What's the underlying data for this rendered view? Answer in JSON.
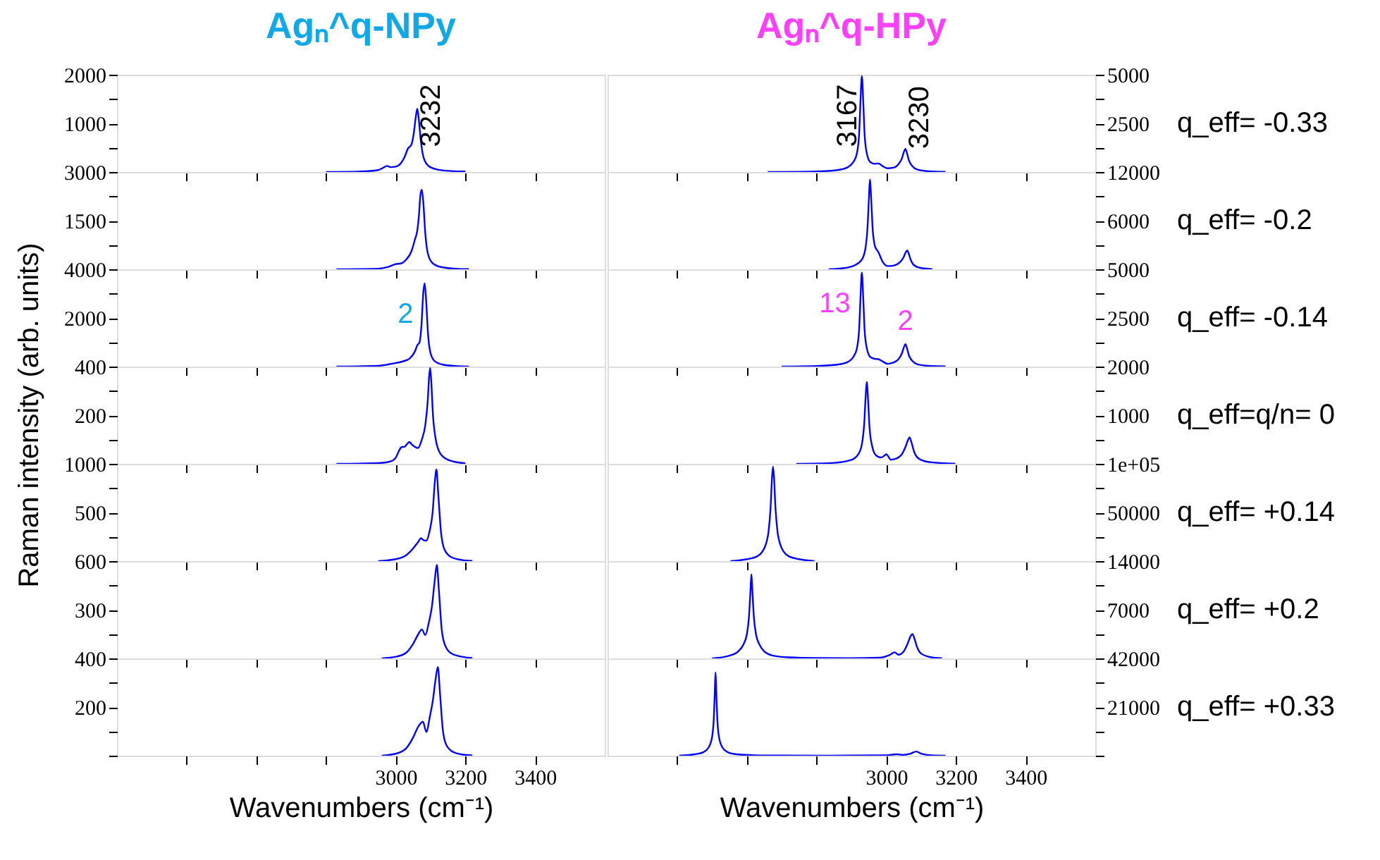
{
  "chart_data": [
    {
      "type": "line",
      "title": "Agₙ^q-NPy",
      "xlim": [
        2200,
        3600
      ],
      "xticks": [
        {
          "value": 2400,
          "label": null
        },
        {
          "value": 2600,
          "label": null
        },
        {
          "value": 2800,
          "label": null
        },
        3000,
        3200,
        3400
      ],
      "ylim": [
        0,
        2000
      ],
      "yticks": [
        {
          "value": 0,
          "label": null
        },
        {
          "value": 500,
          "label": null
        },
        1000,
        {
          "value": 1500,
          "label": null
        },
        2000
      ],
      "tick_labels": "y",
      "annotations": [
        {
          "text": "3232",
          "x": 3062
        }
      ],
      "series": [
        {
          "color": "#0000ff",
          "x": [
            2800,
            2900,
            2950,
            2965,
            2975,
            2985,
            3000,
            3015,
            3025,
            3035,
            3045,
            3052,
            3058,
            3062,
            3066,
            3072,
            3080,
            3095,
            3120,
            3160,
            3200
          ],
          "values": [
            0,
            10,
            40,
            90,
            125,
            100,
            110,
            180,
            300,
            480,
            560,
            800,
            1150,
            1300,
            1100,
            650,
            300,
            120,
            50,
            20,
            10
          ]
        }
      ]
    },
    {
      "type": "line",
      "title": "Agₙ^q-HPy",
      "xlim": [
        2200,
        3600
      ],
      "xticks": [
        {
          "value": 2400,
          "label": null
        },
        {
          "value": 2600,
          "label": null
        },
        {
          "value": 2800,
          "label": null
        },
        3000,
        3200,
        3400
      ],
      "ylim": [
        0,
        5000
      ],
      "yticks": [
        {
          "value": 0,
          "label": null
        },
        {
          "value": 1250,
          "label": null
        },
        2500,
        {
          "value": 3750,
          "label": null
        },
        5000
      ],
      "tick_labels": "y",
      "annotations": [
        {
          "text": "3167",
          "x": 2930
        },
        {
          "text": "3230",
          "x": 3055,
          "y": 1190
        },
        "q_eff= -0.33"
      ],
      "series": [
        {
          "color": "#0000ff",
          "x": [
            2660,
            2800,
            2860,
            2890,
            2905,
            2915,
            2922,
            2926,
            2930,
            2934,
            2938,
            2945,
            2955,
            2967,
            2977,
            2990,
            3004,
            3020,
            3035,
            3045,
            3051,
            3055,
            3059,
            3065,
            3075,
            3090,
            3120,
            3170
          ],
          "values": [
            0,
            30,
            100,
            250,
            500,
            900,
            1900,
            3600,
            4930,
            3600,
            1900,
            900,
            500,
            420,
            440,
            300,
            190,
            220,
            400,
            700,
            1050,
            1190,
            1000,
            600,
            300,
            120,
            40,
            10
          ]
        }
      ]
    },
    {
      "type": "line",
      "xlim": [
        2200,
        3600
      ],
      "xticks": [
        {
          "value": 2400,
          "label": null
        },
        {
          "value": 2600,
          "label": null
        },
        {
          "value": 2800,
          "label": null
        },
        3000,
        3200,
        3400
      ],
      "ylim": [
        0,
        3000
      ],
      "yticks": [
        {
          "value": 0,
          "label": null
        },
        {
          "value": 750,
          "label": null
        },
        1500,
        {
          "value": 2250,
          "label": null
        },
        3000
      ],
      "tick_labels": "y",
      "series": [
        {
          "color": "#0000ff",
          "x": [
            2830,
            2950,
            2980,
            3000,
            3015,
            3030,
            3045,
            3055,
            3062,
            3067,
            3071,
            3075,
            3079,
            3085,
            3092,
            3105,
            3130,
            3170,
            3210
          ],
          "values": [
            0,
            20,
            80,
            160,
            180,
            300,
            550,
            910,
            1200,
            1700,
            2300,
            2450,
            2100,
            1100,
            500,
            200,
            70,
            20,
            5
          ]
        }
      ]
    },
    {
      "type": "line",
      "xlim": [
        2200,
        3600
      ],
      "xticks": [
        {
          "value": 2400,
          "label": null
        },
        {
          "value": 2600,
          "label": null
        },
        {
          "value": 2800,
          "label": null
        },
        3000,
        3200,
        3400
      ],
      "ylim": [
        0,
        12000
      ],
      "yticks": [
        {
          "value": 0,
          "label": null
        },
        {
          "value": 3000,
          "label": null
        },
        6000,
        {
          "value": 9000,
          "label": null
        },
        12000
      ],
      "tick_labels": "y",
      "annotations": [
        "q_eff= -0.2"
      ],
      "series": [
        {
          "color": "#0000ff",
          "x": [
            2835,
            2880,
            2910,
            2930,
            2940,
            2946,
            2950,
            2953,
            2957,
            2961,
            2968,
            2977,
            2990,
            3004,
            3020,
            3040,
            3050,
            3056,
            3060,
            3064,
            3070,
            3080,
            3100,
            3132
          ],
          "values": [
            0,
            150,
            500,
            1200,
            2500,
            5000,
            8500,
            11070,
            8500,
            5000,
            2800,
            2150,
            900,
            400,
            450,
            900,
            1500,
            2100,
            2330,
            2000,
            1200,
            500,
            150,
            20
          ]
        }
      ]
    },
    {
      "type": "line",
      "xlim": [
        2200,
        3600
      ],
      "xticks": [
        {
          "value": 2400,
          "label": null
        },
        {
          "value": 2600,
          "label": null
        },
        {
          "value": 2800,
          "label": null
        },
        3000,
        3200,
        3400
      ],
      "ylim": [
        0,
        4000
      ],
      "yticks": [
        {
          "value": 0,
          "label": null
        },
        {
          "value": 1000,
          "label": null
        },
        2000,
        {
          "value": 3000,
          "label": null
        },
        4000
      ],
      "tick_labels": "y",
      "annotations": [
        {
          "text": "2",
          "x": 3083,
          "y": 3420
        }
      ],
      "series": [
        {
          "color": "#0000ff",
          "x": [
            2830,
            2950,
            2990,
            3020,
            3040,
            3055,
            3063,
            3068,
            3074,
            3079,
            3083,
            3087,
            3093,
            3100,
            3112,
            3135,
            3170,
            3210
          ],
          "values": [
            0,
            30,
            120,
            210,
            330,
            620,
            900,
            980,
            1700,
            3000,
            3420,
            2800,
            1300,
            550,
            220,
            80,
            25,
            5
          ]
        }
      ]
    },
    {
      "type": "line",
      "xlim": [
        2200,
        3600
      ],
      "xticks": [
        {
          "value": 2400,
          "label": null
        },
        {
          "value": 2600,
          "label": null
        },
        {
          "value": 2800,
          "label": null
        },
        3000,
        3200,
        3400
      ],
      "ylim": [
        0,
        5000
      ],
      "yticks": [
        {
          "value": 0,
          "label": null
        },
        {
          "value": 1250,
          "label": null
        },
        2500,
        {
          "value": 3750,
          "label": null
        },
        5000
      ],
      "tick_labels": "y",
      "annotations": [
        {
          "text": "13",
          "x": 2930,
          "y": 4830
        },
        {
          "text": "2",
          "x": 3055,
          "y": 1150
        },
        "q_eff= -0.14"
      ],
      "series": [
        {
          "color": "#0000ff",
          "x": [
            2700,
            2800,
            2860,
            2890,
            2905,
            2915,
            2922,
            2926,
            2930,
            2934,
            2938,
            2945,
            2955,
            2967,
            2977,
            2990,
            3004,
            3020,
            3035,
            3045,
            3051,
            3055,
            3059,
            3065,
            3075,
            3090,
            3120,
            3170
          ],
          "values": [
            0,
            30,
            100,
            240,
            480,
            880,
            1850,
            3500,
            4830,
            3500,
            1850,
            880,
            480,
            400,
            380,
            260,
            140,
            200,
            380,
            680,
            1010,
            1150,
            970,
            580,
            290,
            110,
            35,
            10
          ]
        }
      ]
    },
    {
      "type": "line",
      "ylabel": "Raman intensity (arb. units)",
      "xlim": [
        2200,
        3600
      ],
      "xticks": [
        {
          "value": 2400,
          "label": null
        },
        {
          "value": 2600,
          "label": null
        },
        {
          "value": 2800,
          "label": null
        },
        3000,
        3200,
        3400
      ],
      "ylim": [
        0,
        400
      ],
      "yticks": [
        {
          "value": 0,
          "label": null
        },
        {
          "value": 100,
          "label": null
        },
        200,
        {
          "value": 300,
          "label": null
        },
        400
      ],
      "tick_labels": "y",
      "series": [
        {
          "color": "#0000ff",
          "x": [
            2830,
            2950,
            2985,
            3000,
            3010,
            3017,
            3025,
            3033,
            3039,
            3046,
            3055,
            3064,
            3075,
            3085,
            3092,
            3096,
            3099,
            3102,
            3107,
            3115,
            3125,
            3145,
            3170,
            3200
          ],
          "values": [
            0,
            3,
            10,
            25,
            55,
            69,
            70,
            82,
            90,
            80,
            70,
            65,
            100,
            160,
            260,
            360,
            394,
            340,
            200,
            100,
            50,
            20,
            8,
            2
          ]
        }
      ]
    },
    {
      "type": "line",
      "xlim": [
        2200,
        3600
      ],
      "xticks": [
        {
          "value": 2400,
          "label": null
        },
        {
          "value": 2600,
          "label": null
        },
        {
          "value": 2800,
          "label": null
        },
        3000,
        3200,
        3400
      ],
      "ylim": [
        0,
        2000
      ],
      "yticks": [
        {
          "value": 0,
          "label": null
        },
        {
          "value": 500,
          "label": null
        },
        1000,
        {
          "value": 1500,
          "label": null
        },
        2000
      ],
      "tick_labels": "y",
      "annotations": [
        "q_eff=q/n= 0"
      ],
      "series": [
        {
          "color": "#0000ff",
          "x": [
            2742,
            2850,
            2900,
            2920,
            2930,
            2937,
            2941,
            2944,
            2948,
            2952,
            2960,
            2970,
            2985,
            2995,
            3000,
            3006,
            3012,
            3025,
            3045,
            3057,
            3063,
            3067,
            3072,
            3080,
            3095,
            3130,
            3198
          ],
          "values": [
            0,
            20,
            80,
            200,
            400,
            850,
            1400,
            1684,
            1300,
            750,
            350,
            180,
            130,
            170,
            200,
            150,
            86,
            100,
            200,
            380,
            500,
            545,
            450,
            250,
            100,
            30,
            5
          ]
        }
      ]
    },
    {
      "type": "line",
      "xlim": [
        2200,
        3600
      ],
      "xticks": [
        {
          "value": 2400,
          "label": null
        },
        {
          "value": 2600,
          "label": null
        },
        {
          "value": 2800,
          "label": null
        },
        3000,
        3200,
        3400
      ],
      "ylim": [
        0,
        1000
      ],
      "yticks": [
        {
          "value": 0,
          "label": null
        },
        {
          "value": 250,
          "label": null
        },
        500,
        {
          "value": 750,
          "label": null
        },
        1000
      ],
      "tick_labels": "y",
      "series": [
        {
          "color": "#0000ff",
          "x": [
            2950,
            3000,
            3030,
            3050,
            3065,
            3073,
            3080,
            3088,
            3098,
            3106,
            3112,
            3117,
            3122,
            3130,
            3140,
            3160,
            3190,
            3220
          ],
          "values": [
            0,
            20,
            60,
            130,
            200,
            235,
            215,
            210,
            320,
            500,
            800,
            942,
            700,
            300,
            120,
            40,
            12,
            3
          ]
        }
      ]
    },
    {
      "type": "line",
      "xlim": [
        2200,
        3600
      ],
      "xticks": [
        {
          "value": 2400,
          "label": null
        },
        {
          "value": 2600,
          "label": null
        },
        {
          "value": 2800,
          "label": null
        },
        3000,
        3200,
        3400
      ],
      "ylim": [
        0,
        100000
      ],
      "yticks": [
        {
          "value": 0,
          "label": null
        },
        {
          "value": 25000,
          "label": null
        },
        50000,
        {
          "value": 75000,
          "label": null
        },
        {
          "value": 100000,
          "label": "1e+05"
        }
      ],
      "tick_labels": "y",
      "annotations": [
        "q_eff= +0.14"
      ],
      "series": [
        {
          "color": "#0000ff",
          "x": [
            2553,
            2600,
            2630,
            2645,
            2655,
            2662,
            2668,
            2672,
            2675,
            2678,
            2682,
            2688,
            2695,
            2705,
            2720,
            2750,
            2794
          ],
          "values": [
            0,
            2000,
            5000,
            10000,
            18000,
            30000,
            55000,
            85000,
            97100,
            85000,
            55000,
            30000,
            18000,
            10000,
            5000,
            2000,
            0
          ]
        }
      ]
    },
    {
      "type": "line",
      "xlim": [
        2200,
        3600
      ],
      "xticks": [
        {
          "value": 2400,
          "label": null
        },
        {
          "value": 2600,
          "label": null
        },
        {
          "value": 2800,
          "label": null
        },
        3000,
        3200,
        3400
      ],
      "ylim": [
        0,
        600
      ],
      "yticks": [
        {
          "value": 0,
          "label": null
        },
        {
          "value": 150,
          "label": null
        },
        300,
        {
          "value": 450,
          "label": null
        },
        600
      ],
      "tick_labels": "y",
      "series": [
        {
          "color": "#0000ff",
          "x": [
            2960,
            3000,
            3030,
            3050,
            3065,
            3075,
            3085,
            3095,
            3104,
            3112,
            3118,
            3124,
            3132,
            3142,
            3160,
            3190,
            3220
          ],
          "values": [
            0,
            10,
            35,
            90,
            150,
            179,
            144,
            220,
            320,
            480,
            577,
            420,
            180,
            80,
            30,
            10,
            2
          ]
        }
      ]
    },
    {
      "type": "line",
      "xlim": [
        2200,
        3600
      ],
      "xticks": [
        {
          "value": 2400,
          "label": null
        },
        {
          "value": 2600,
          "label": null
        },
        {
          "value": 2800,
          "label": null
        },
        3000,
        3200,
        3400
      ],
      "ylim": [
        0,
        14000
      ],
      "yticks": [
        {
          "value": 0,
          "label": null
        },
        {
          "value": 3500,
          "label": null
        },
        7000,
        {
          "value": 10500,
          "label": null
        },
        14000
      ],
      "tick_labels": "y",
      "annotations": [
        "q_eff= +0.2"
      ],
      "series": [
        {
          "color": "#0000ff",
          "x": [
            2500,
            2550,
            2575,
            2590,
            2600,
            2606,
            2610,
            2613,
            2616,
            2620,
            2626,
            2636,
            2650,
            2675,
            2720,
            2800,
            2900,
            2980,
            3010,
            3024,
            3035,
            3050,
            3062,
            3070,
            3075,
            3080,
            3088,
            3100,
            3130,
            3160
          ],
          "values": [
            0,
            400,
            1000,
            2000,
            3500,
            6000,
            9500,
            12100,
            9500,
            6000,
            3500,
            2000,
            1000,
            400,
            150,
            50,
            30,
            100,
            500,
            875,
            540,
            1000,
            2200,
            3200,
            3500,
            3000,
            1700,
            700,
            150,
            20
          ]
        }
      ]
    },
    {
      "type": "line",
      "xlabel": "Wavenumbers (cm⁻¹)",
      "xlim": [
        2200,
        3600
      ],
      "xticks": [
        {
          "value": 2400,
          "label": null
        },
        {
          "value": 2600,
          "label": null
        },
        {
          "value": 2800,
          "label": null
        },
        3000,
        3200,
        3400
      ],
      "ylim": [
        0,
        400
      ],
      "yticks": [
        {
          "value": 0,
          "label": null
        },
        {
          "value": 100,
          "label": null
        },
        200,
        {
          "value": 300,
          "label": null
        },
        400
      ],
      "series": [
        {
          "color": "#0000ff",
          "x": [
            2960,
            3000,
            3030,
            3050,
            3065,
            3078,
            3088,
            3098,
            3107,
            3115,
            3121,
            3127,
            3135,
            3145,
            3165,
            3190,
            3220
          ],
          "values": [
            0,
            8,
            30,
            75,
            120,
            140,
            98,
            160,
            230,
            320,
            365,
            260,
            110,
            45,
            15,
            5,
            1
          ]
        }
      ]
    },
    {
      "type": "line",
      "xlabel": "Wavenumbers (cm⁻¹)",
      "xlim": [
        2200,
        3600
      ],
      "xticks": [
        {
          "value": 2400,
          "label": null
        },
        {
          "value": 2600,
          "label": null
        },
        {
          "value": 2800,
          "label": null
        },
        3000,
        3200,
        3400
      ],
      "ylim": [
        0,
        42000
      ],
      "yticks": [
        {
          "value": 0,
          "label": null
        },
        {
          "value": 10500,
          "label": null
        },
        21000,
        {
          "value": 31500,
          "label": null
        },
        42000
      ],
      "annotations": [
        "q_eff= +0.33"
      ],
      "series": [
        {
          "color": "#0000ff",
          "x": [
            2406,
            2450,
            2475,
            2490,
            2500,
            2505,
            2508,
            2510,
            2512,
            2515,
            2520,
            2530,
            2545,
            2570,
            2620,
            2700,
            2800,
            2900,
            3000,
            3030,
            3045,
            3070,
            3086,
            3100,
            3130,
            3170
          ],
          "values": [
            0,
            600,
            1500,
            3500,
            8000,
            16000,
            28000,
            35940,
            28000,
            16000,
            8000,
            3500,
            1500,
            600,
            200,
            80,
            50,
            60,
            150,
            600,
            350,
            900,
            1800,
            900,
            200,
            30
          ]
        }
      ]
    }
  ]
}
